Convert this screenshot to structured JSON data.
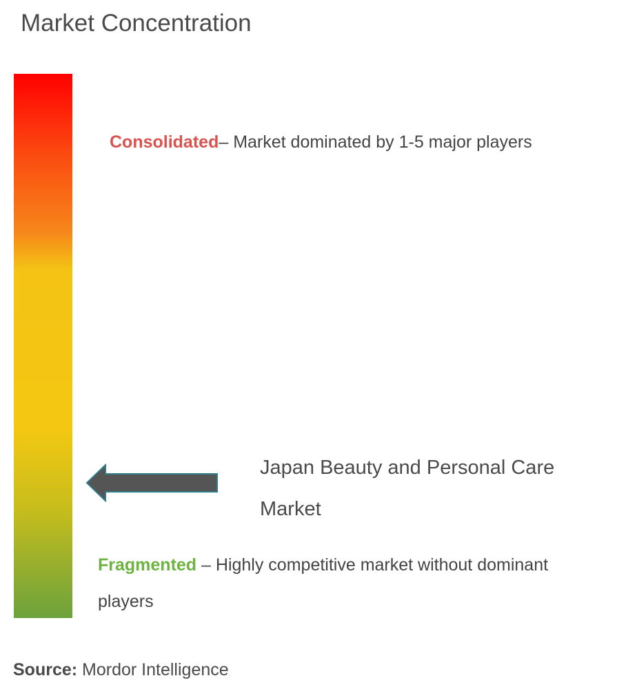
{
  "title": "Market Concentration",
  "scale": {
    "top_color": "#ff0000",
    "bottom_color": "#6ca23d"
  },
  "consolidated": {
    "term": "Consolidated",
    "description": "– Market dominated by 1-5 major players",
    "color": "#d9534f"
  },
  "fragmented": {
    "term": "Fragmented",
    "description": " – Highly competitive market without dominant players",
    "color": "#6db33f"
  },
  "indicator": {
    "market_name": "Japan Beauty and Personal Care Market",
    "arrow_icon": "left-arrow-icon",
    "arrow_color": "#555555",
    "arrow_outline": "#2e7d8c"
  },
  "source": {
    "label": "Source:",
    "value": " Mordor Intelligence"
  }
}
